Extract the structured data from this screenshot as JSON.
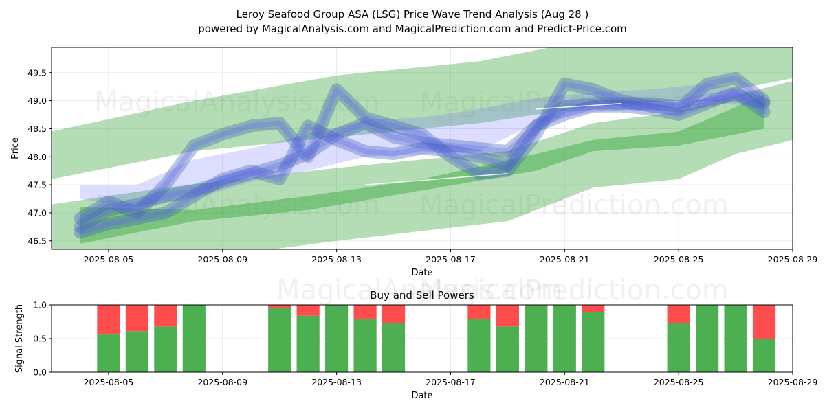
{
  "title_line1": "Leroy Seafood Group ASA (LSG) Price Wave Trend Analysis (Aug 28 )",
  "title_line2": "powered by MagicalAnalysis.com and MagicalPrediction.com and Predict-Price.com",
  "watermarks": [
    "MagicalAnalysis.com",
    "MagicalPrediction.com"
  ],
  "colors": {
    "green_band": "#4caf50",
    "blue_band": "#6464ff",
    "buy": "#4caf50",
    "sell": "#ff4c4c",
    "grid": "#e6e6e6"
  },
  "chart_data": [
    {
      "type": "area",
      "title": "",
      "xlabel": "Date",
      "ylabel": "Price",
      "xlim": [
        "2025-08-03",
        "2025-08-29"
      ],
      "ylim": [
        46.35,
        49.95
      ],
      "x_ticks": [
        "2025-08-05",
        "2025-08-09",
        "2025-08-13",
        "2025-08-17",
        "2025-08-21",
        "2025-08-25",
        "2025-08-29"
      ],
      "y_ticks": [
        46.5,
        47.0,
        47.5,
        48.0,
        48.5,
        49.0,
        49.5
      ],
      "grid": true,
      "series": [
        {
          "kind": "green-band",
          "x": [
            "2025-08-03",
            "2025-08-08",
            "2025-08-13",
            "2025-08-18",
            "2025-08-22",
            "2025-08-25",
            "2025-08-29"
          ],
          "upper": [
            48.45,
            49.0,
            49.45,
            49.7,
            50.1,
            50.3,
            50.4
          ],
          "lower": [
            47.6,
            48.1,
            48.35,
            48.6,
            48.9,
            49.0,
            49.4
          ]
        },
        {
          "kind": "green-band",
          "x": [
            "2025-08-03",
            "2025-08-07",
            "2025-08-13",
            "2025-08-19",
            "2025-08-22",
            "2025-08-25",
            "2025-08-27",
            "2025-08-29"
          ],
          "upper": [
            47.15,
            47.45,
            47.8,
            48.1,
            48.6,
            48.8,
            49.1,
            49.35
          ],
          "lower": [
            46.2,
            46.1,
            46.5,
            46.85,
            47.45,
            47.6,
            48.05,
            48.3
          ]
        },
        {
          "kind": "green-band",
          "x": [
            "2025-08-04",
            "2025-08-08",
            "2025-08-12",
            "2025-08-16",
            "2025-08-20",
            "2025-08-22",
            "2025-08-25",
            "2025-08-28"
          ],
          "upper": [
            47.1,
            47.05,
            47.3,
            47.6,
            48.05,
            48.3,
            48.45,
            49.1
          ],
          "lower": [
            46.45,
            46.85,
            47.05,
            47.4,
            47.75,
            48.1,
            48.2,
            48.5
          ]
        },
        {
          "kind": "blue-band",
          "x": [
            "2025-08-04",
            "2025-08-06",
            "2025-08-08",
            "2025-08-10",
            "2025-08-12",
            "2025-08-14",
            "2025-08-16",
            "2025-08-18",
            "2025-08-20",
            "2025-08-22",
            "2025-08-24",
            "2025-08-26",
            "2025-08-28"
          ],
          "upper": [
            47.5,
            47.5,
            47.95,
            48.15,
            48.4,
            48.65,
            48.7,
            48.85,
            49.05,
            49.15,
            49.2,
            49.3,
            49.15
          ],
          "lower": [
            47.25,
            47.1,
            47.25,
            47.55,
            47.75,
            48.0,
            48.05,
            48.1,
            48.6,
            48.8,
            48.85,
            49.0,
            48.85
          ]
        },
        {
          "kind": "blue-wave",
          "x": [
            "2025-08-04",
            "2025-08-05",
            "2025-08-06",
            "2025-08-07",
            "2025-08-08",
            "2025-08-09",
            "2025-08-10",
            "2025-08-11",
            "2025-08-12",
            "2025-08-13",
            "2025-08-14",
            "2025-08-15",
            "2025-08-16",
            "2025-08-17",
            "2025-08-18",
            "2025-08-19",
            "2025-08-20",
            "2025-08-21",
            "2025-08-22",
            "2025-08-23",
            "2025-08-24",
            "2025-08-25",
            "2025-08-26",
            "2025-08-27",
            "2025-08-28"
          ],
          "values": [
            46.75,
            47.05,
            47.15,
            47.3,
            47.4,
            47.55,
            47.7,
            47.85,
            48.05,
            48.4,
            48.6,
            48.35,
            48.25,
            48.2,
            48.15,
            48.1,
            48.55,
            48.9,
            48.95,
            48.95,
            48.95,
            48.9,
            49.0,
            49.1,
            48.95
          ]
        },
        {
          "kind": "blue-wave",
          "x": [
            "2025-08-04",
            "2025-08-05",
            "2025-08-06",
            "2025-08-07",
            "2025-08-08",
            "2025-08-09",
            "2025-08-10",
            "2025-08-11",
            "2025-08-12",
            "2025-08-13",
            "2025-08-14",
            "2025-08-15",
            "2025-08-16",
            "2025-08-17",
            "2025-08-18",
            "2025-08-19",
            "2025-08-20",
            "2025-08-21",
            "2025-08-22",
            "2025-08-23",
            "2025-08-24",
            "2025-08-25",
            "2025-08-26",
            "2025-08-27",
            "2025-08-28"
          ],
          "values": [
            46.9,
            47.2,
            47.0,
            47.5,
            48.2,
            48.4,
            48.55,
            48.6,
            48.0,
            49.2,
            48.7,
            48.55,
            48.4,
            48.0,
            47.7,
            47.75,
            48.4,
            49.3,
            49.2,
            49.0,
            48.9,
            48.85,
            49.3,
            49.4,
            49.0
          ]
        },
        {
          "kind": "blue-wave",
          "x": [
            "2025-08-04",
            "2025-08-05",
            "2025-08-06",
            "2025-08-07",
            "2025-08-08",
            "2025-08-09",
            "2025-08-10",
            "2025-08-11",
            "2025-08-12",
            "2025-08-13",
            "2025-08-14",
            "2025-08-15",
            "2025-08-16",
            "2025-08-17",
            "2025-08-18",
            "2025-08-19",
            "2025-08-20",
            "2025-08-21",
            "2025-08-22",
            "2025-08-23",
            "2025-08-24",
            "2025-08-25",
            "2025-08-26",
            "2025-08-27",
            "2025-08-28"
          ],
          "values": [
            46.65,
            46.8,
            46.9,
            47.0,
            47.3,
            47.6,
            47.75,
            47.6,
            48.55,
            48.3,
            48.1,
            48.05,
            48.15,
            48.1,
            48.0,
            47.85,
            48.55,
            48.75,
            48.9,
            48.9,
            48.85,
            48.75,
            48.95,
            49.15,
            48.8
          ]
        },
        {
          "kind": "white-line",
          "x": [
            "2025-08-14",
            "2025-08-19"
          ],
          "values": [
            47.5,
            47.7
          ]
        },
        {
          "kind": "white-line",
          "x": [
            "2025-08-20",
            "2025-08-23"
          ],
          "values": [
            48.85,
            48.95
          ]
        }
      ]
    },
    {
      "type": "bar",
      "title": "Buy and Sell Powers",
      "xlabel": "Date",
      "ylabel": "Signal Strength",
      "xlim": [
        "2025-08-03",
        "2025-08-29"
      ],
      "ylim": [
        0,
        1.0
      ],
      "x_ticks": [
        "2025-08-05",
        "2025-08-09",
        "2025-08-13",
        "2025-08-17",
        "2025-08-21",
        "2025-08-25",
        "2025-08-29"
      ],
      "y_ticks": [
        0.0,
        0.5,
        1.0
      ],
      "grid": true,
      "series": [
        {
          "name": "Buy"
        },
        {
          "name": "Sell"
        }
      ],
      "dates": [
        "2025-08-05",
        "2025-08-06",
        "2025-08-07",
        "2025-08-08",
        "2025-08-11",
        "2025-08-12",
        "2025-08-13",
        "2025-08-14",
        "2025-08-15",
        "2025-08-18",
        "2025-08-19",
        "2025-08-20",
        "2025-08-21",
        "2025-08-22",
        "2025-08-25",
        "2025-08-26",
        "2025-08-27",
        "2025-08-28"
      ],
      "buy": [
        0.56,
        0.61,
        0.68,
        1.0,
        0.96,
        0.84,
        1.0,
        0.79,
        0.73,
        0.79,
        0.68,
        1.0,
        1.0,
        0.89,
        0.73,
        1.0,
        1.0,
        0.5
      ],
      "sell": [
        0.44,
        0.39,
        0.32,
        0.0,
        0.04,
        0.16,
        0.0,
        0.21,
        0.27,
        0.21,
        0.32,
        0.0,
        0.0,
        0.11,
        0.27,
        0.0,
        0.0,
        0.5
      ]
    }
  ]
}
